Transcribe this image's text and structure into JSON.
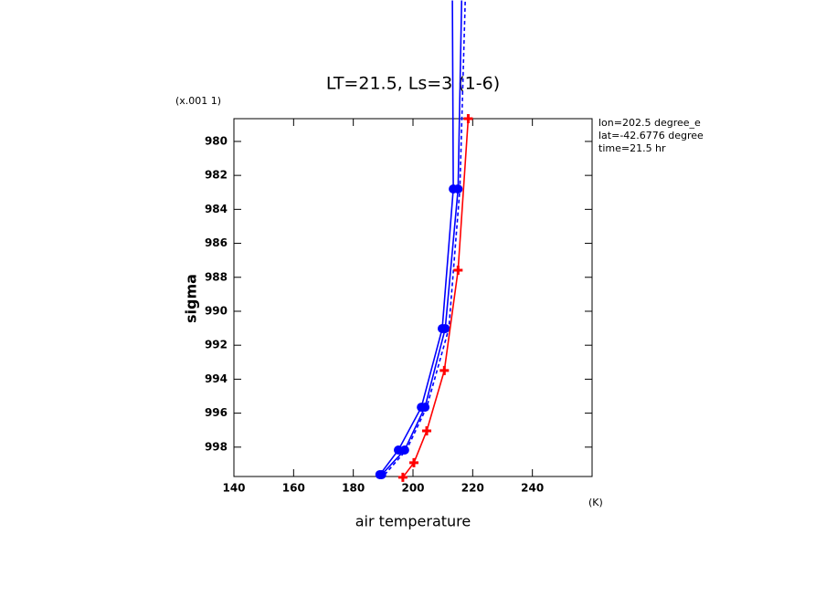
{
  "chart_data": {
    "type": "line",
    "title": "LT=21.5, Ls=3 (1-6)",
    "x_label": "air temperature",
    "x_units": "(K)",
    "y_label": "sigma",
    "y_units": "(x.001 1)",
    "annotations": [
      "lon=202.5 degree_e",
      "lat=-42.6776 degree",
      "time=21.5 hr"
    ],
    "xlim": [
      140,
      260
    ],
    "xticks": [
      140,
      160,
      180,
      200,
      220,
      240
    ],
    "ylim": [
      978.66,
      999.73
    ],
    "y_inverted": true,
    "yticks": [
      980,
      982,
      984,
      986,
      988,
      990,
      992,
      994,
      996,
      998
    ],
    "series": [
      {
        "color": "#0000ff",
        "marker": "circle",
        "dashed": false,
        "x": [
          188.9,
          195.1,
          202.8,
          209.8,
          213.5,
          213.2
        ],
        "values": [
          999.62,
          998.17,
          995.65,
          991.02,
          982.8,
          971.7
        ]
      },
      {
        "color": "#0000ff",
        "marker": "circle",
        "dashed": false,
        "x": [
          189.5,
          197.2,
          204.0,
          210.8,
          215.1,
          216.3
        ],
        "values": [
          999.62,
          998.17,
          995.65,
          991.02,
          982.8,
          971.7
        ]
      },
      {
        "color": "#0000ff",
        "marker": "none",
        "dashed": true,
        "x": [
          190.5,
          197.8,
          204.6,
          212.0,
          215.7,
          217.5
        ],
        "values": [
          999.62,
          998.17,
          995.65,
          991.02,
          982.8,
          971.7
        ]
      },
      {
        "color": "#ff0000",
        "marker": "plus",
        "dashed": false,
        "x": [
          196.6,
          200.3,
          204.6,
          210.5,
          215.1,
          218.5
        ],
        "values": [
          999.78,
          998.92,
          997.04,
          993.49,
          987.58,
          978.66
        ]
      }
    ]
  }
}
